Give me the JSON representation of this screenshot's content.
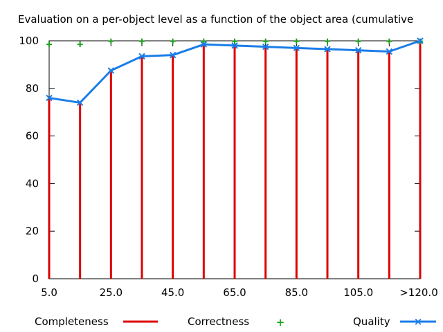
{
  "chart_data": {
    "type": "line",
    "title": "Evaluation on a per-object level as a function of the object area (cumulative",
    "xlabel": "",
    "ylabel": "",
    "x_tick_labels": [
      "5.0",
      "25.0",
      "45.0",
      "65.0",
      "85.0",
      "105.0",
      ">120.0"
    ],
    "categories": [
      "5.0",
      "15.0",
      "25.0",
      "35.0",
      "45.0",
      "55.0",
      "65.0",
      "75.0",
      "85.0",
      "95.0",
      "105.0",
      "115.0",
      ">120.0"
    ],
    "ylim": [
      0,
      100
    ],
    "y_ticks": [
      0,
      20,
      40,
      60,
      80,
      100
    ],
    "grid": false,
    "legend_position": "bottom",
    "series": [
      {
        "name": "Completeness",
        "style": "impulses",
        "color": "#dd0000",
        "values": [
          76,
          74,
          87.5,
          93.5,
          94,
          98.5,
          98,
          97.5,
          97,
          96.5,
          96,
          95.5,
          100
        ]
      },
      {
        "name": "Correctness",
        "style": "points-plus",
        "color": "#1aa31a",
        "values": [
          98.5,
          98.5,
          99.8,
          99.8,
          99.8,
          99.8,
          99.8,
          99.8,
          99.8,
          99.8,
          99.8,
          99.8,
          99.8
        ]
      },
      {
        "name": "Quality",
        "style": "line-cross",
        "color": "#1a7de8",
        "values": [
          76,
          74,
          87.5,
          93.5,
          94,
          98.5,
          98,
          97.5,
          97,
          96.5,
          96,
          95.5,
          100
        ]
      }
    ]
  }
}
